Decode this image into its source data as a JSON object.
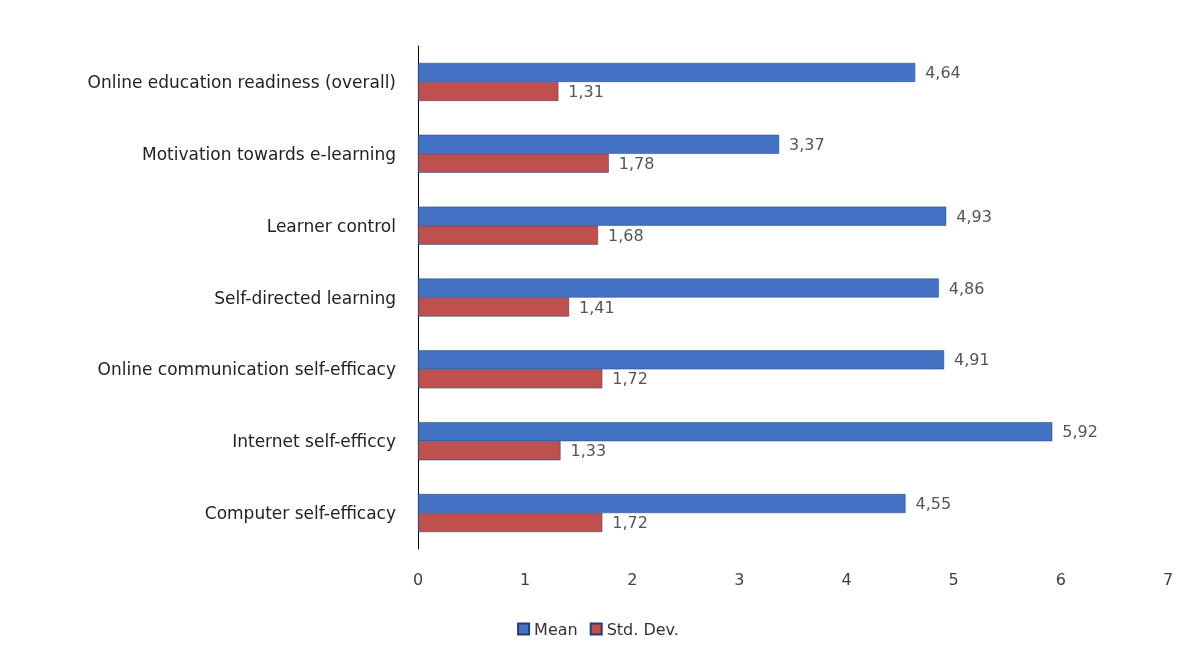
{
  "chart_data": {
    "type": "bar",
    "orientation": "horizontal",
    "categories": [
      "Online education readiness (overall)",
      "Motivation towards e-learning",
      "Learner control",
      "Self-directed learning",
      "Online communication self-efficacy",
      "Internet self-efficcy",
      "Computer self-efficacy"
    ],
    "series": [
      {
        "name": "Mean",
        "color": "#4472c4",
        "values": [
          4.64,
          3.37,
          4.93,
          4.86,
          4.91,
          5.92,
          4.55
        ],
        "value_labels": [
          "4,64",
          "3,37",
          "4,93",
          "4,86",
          "4,91",
          "5,92",
          "4,55"
        ]
      },
      {
        "name": "Std. Dev.",
        "color": "#c0504d",
        "values": [
          1.31,
          1.78,
          1.68,
          1.41,
          1.72,
          1.33,
          1.72
        ],
        "value_labels": [
          "1,31",
          "1,78",
          "1,68",
          "1,41",
          "1,72",
          "1,33",
          "1,72"
        ]
      }
    ],
    "xlim": [
      0,
      7
    ],
    "xticks": [
      0,
      1,
      2,
      3,
      4,
      5,
      6,
      7
    ],
    "grid": false,
    "legend": "bottom"
  }
}
